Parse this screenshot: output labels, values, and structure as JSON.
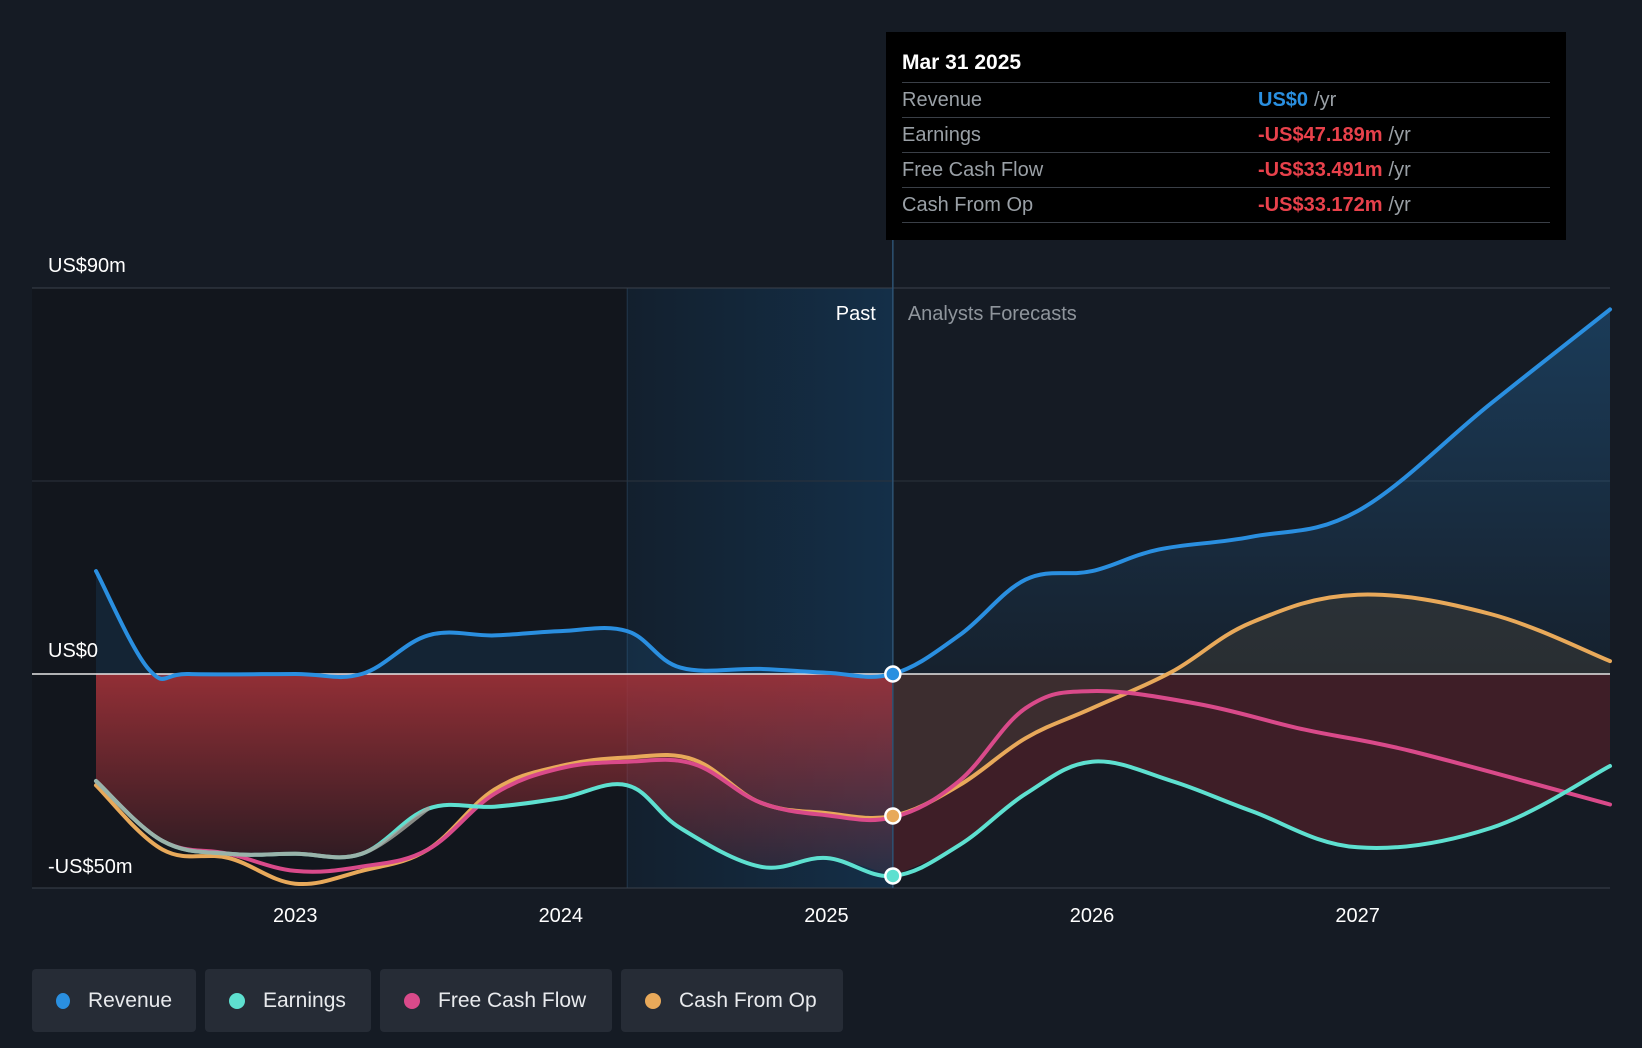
{
  "chart_data": {
    "type": "line",
    "y_unit": "US$m",
    "ylim": [
      -50,
      90
    ],
    "y_ticks": [
      {
        "value": 90,
        "label": "US$90m"
      },
      {
        "value": 0,
        "label": "US$0"
      },
      {
        "value": -50,
        "label": "-US$50m"
      }
    ],
    "x_range": [
      2022.2,
      2027.95
    ],
    "x_ticks": [
      {
        "value": 2023,
        "label": "2023"
      },
      {
        "value": 2024,
        "label": "2024"
      },
      {
        "value": 2025,
        "label": "2025"
      },
      {
        "value": 2026,
        "label": "2026"
      },
      {
        "value": 2027,
        "label": "2027"
      }
    ],
    "divider_x": 2025.25,
    "shade_start_x": 2024.25,
    "past_label": "Past",
    "forecast_label": "Analysts Forecasts",
    "series": [
      {
        "name": "Revenue",
        "color": "#2a8fe0",
        "past": [
          [
            2022.25,
            24
          ],
          [
            2022.45,
            1
          ],
          [
            2022.6,
            0
          ],
          [
            2023.0,
            0
          ],
          [
            2023.25,
            0
          ],
          [
            2023.5,
            9
          ],
          [
            2023.75,
            9
          ],
          [
            2024.0,
            10
          ],
          [
            2024.25,
            10
          ],
          [
            2024.45,
            1.5
          ],
          [
            2024.75,
            1.2
          ],
          [
            2025.0,
            0.3
          ],
          [
            2025.25,
            0
          ]
        ],
        "forecast": [
          [
            2025.25,
            0
          ],
          [
            2025.5,
            9
          ],
          [
            2025.75,
            22
          ],
          [
            2026.0,
            24
          ],
          [
            2026.25,
            29
          ],
          [
            2026.6,
            32
          ],
          [
            2027.0,
            38
          ],
          [
            2027.5,
            63
          ],
          [
            2027.95,
            85
          ]
        ]
      },
      {
        "name": "Earnings",
        "color": "#5ee0d0",
        "past": [
          [
            2022.25,
            -25
          ],
          [
            2022.5,
            -39
          ],
          [
            2022.75,
            -42
          ],
          [
            2023.0,
            -42
          ],
          [
            2023.25,
            -42
          ],
          [
            2023.5,
            -31.5
          ],
          [
            2023.75,
            -31
          ],
          [
            2024.0,
            -29
          ],
          [
            2024.25,
            -26
          ],
          [
            2024.45,
            -36
          ],
          [
            2024.75,
            -45
          ],
          [
            2025.0,
            -43
          ],
          [
            2025.25,
            -47.189
          ]
        ],
        "forecast": [
          [
            2025.25,
            -47.189
          ],
          [
            2025.5,
            -40
          ],
          [
            2025.75,
            -28
          ],
          [
            2026.0,
            -20.5
          ],
          [
            2026.3,
            -25
          ],
          [
            2026.6,
            -32
          ],
          [
            2027.0,
            -40.5
          ],
          [
            2027.5,
            -36
          ],
          [
            2027.95,
            -21.5
          ]
        ]
      },
      {
        "name": "Free Cash Flow",
        "color": "#d94a8a",
        "past": [
          [
            2022.25,
            -25
          ],
          [
            2022.5,
            -39
          ],
          [
            2022.75,
            -42
          ],
          [
            2023.0,
            -46
          ],
          [
            2023.25,
            -45
          ],
          [
            2023.5,
            -41
          ],
          [
            2023.75,
            -28
          ],
          [
            2024.0,
            -22
          ],
          [
            2024.25,
            -20.5
          ],
          [
            2024.5,
            -21
          ],
          [
            2024.75,
            -30
          ],
          [
            2025.0,
            -33
          ],
          [
            2025.25,
            -33.491
          ]
        ],
        "forecast": [
          [
            2025.25,
            -33.491
          ],
          [
            2025.5,
            -25
          ],
          [
            2025.75,
            -8
          ],
          [
            2026.0,
            -4
          ],
          [
            2026.4,
            -7
          ],
          [
            2026.8,
            -13
          ],
          [
            2027.2,
            -18
          ],
          [
            2027.95,
            -30.5
          ]
        ]
      },
      {
        "name": "Cash From Op",
        "color": "#e8a95a",
        "past": [
          [
            2022.25,
            -26
          ],
          [
            2022.5,
            -41
          ],
          [
            2022.75,
            -43
          ],
          [
            2023.0,
            -49
          ],
          [
            2023.25,
            -46
          ],
          [
            2023.5,
            -41
          ],
          [
            2023.75,
            -27
          ],
          [
            2024.0,
            -21.5
          ],
          [
            2024.25,
            -19.5
          ],
          [
            2024.5,
            -20
          ],
          [
            2024.75,
            -30
          ],
          [
            2025.0,
            -32.5
          ],
          [
            2025.25,
            -33.172
          ]
        ],
        "forecast": [
          [
            2025.25,
            -33.172
          ],
          [
            2025.5,
            -26
          ],
          [
            2025.75,
            -15
          ],
          [
            2026.0,
            -8
          ],
          [
            2026.3,
            0.5
          ],
          [
            2026.6,
            12
          ],
          [
            2027.0,
            18.5
          ],
          [
            2027.5,
            14
          ],
          [
            2027.95,
            3
          ]
        ]
      }
    ],
    "highlight_x": 2025.25
  },
  "tooltip": {
    "date": "Mar 31 2025",
    "rows": [
      {
        "label": "Revenue",
        "value": "US$0",
        "unit": "/yr",
        "color": "#2a8fe0"
      },
      {
        "label": "Earnings",
        "value": "-US$47.189m",
        "unit": "/yr",
        "color": "#e8414b"
      },
      {
        "label": "Free Cash Flow",
        "value": "-US$33.491m",
        "unit": "/yr",
        "color": "#e8414b"
      },
      {
        "label": "Cash From Op",
        "value": "-US$33.172m",
        "unit": "/yr",
        "color": "#e8414b"
      }
    ]
  },
  "legend": [
    {
      "label": "Revenue",
      "color": "#2a8fe0"
    },
    {
      "label": "Earnings",
      "color": "#5ee0d0"
    },
    {
      "label": "Free Cash Flow",
      "color": "#d94a8a"
    },
    {
      "label": "Cash From Op",
      "color": "#e8a95a"
    }
  ]
}
